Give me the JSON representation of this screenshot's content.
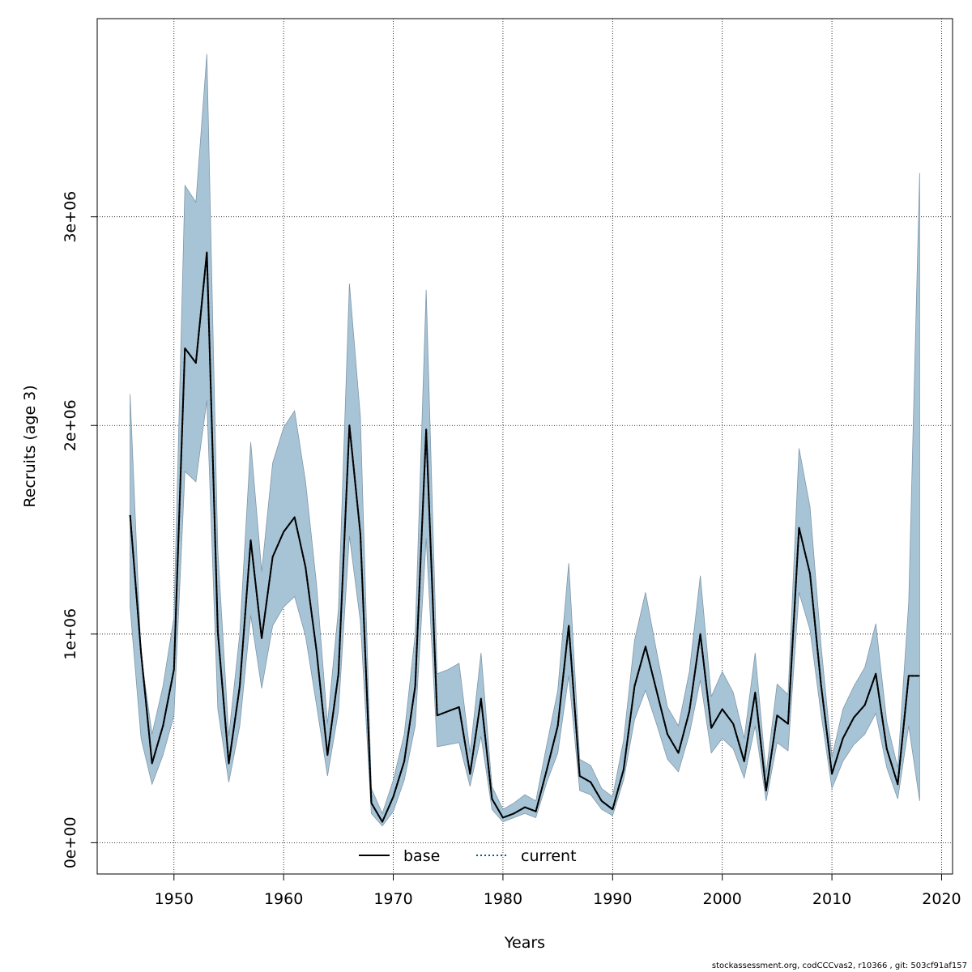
{
  "chart_data": {
    "type": "line",
    "xlabel": "Years",
    "ylabel": "Recruits (age 3)",
    "xlim": [
      1943,
      2021
    ],
    "ylim": [
      -150000,
      3950000
    ],
    "x_ticks": [
      1950,
      1960,
      1970,
      1980,
      1990,
      2000,
      2010,
      2020
    ],
    "x_tick_labels": [
      "1950",
      "1960",
      "1970",
      "1980",
      "1990",
      "2000",
      "2010",
      "2020"
    ],
    "y_ticks": [
      0,
      1000000,
      2000000,
      3000000
    ],
    "y_tick_labels": [
      "0e+00",
      "1e+06",
      "2e+06",
      "3e+06"
    ],
    "grid": true,
    "legend_position": "bottom-center",
    "years": [
      1946,
      1947,
      1948,
      1949,
      1950,
      1951,
      1952,
      1953,
      1954,
      1955,
      1956,
      1957,
      1958,
      1959,
      1960,
      1961,
      1962,
      1963,
      1964,
      1965,
      1966,
      1967,
      1968,
      1969,
      1970,
      1971,
      1972,
      1973,
      1974,
      1975,
      1976,
      1977,
      1978,
      1979,
      1980,
      1981,
      1982,
      1983,
      1984,
      1985,
      1986,
      1987,
      1988,
      1989,
      1990,
      1991,
      1992,
      1993,
      1994,
      1995,
      1996,
      1997,
      1998,
      1999,
      2000,
      2001,
      2002,
      2003,
      2004,
      2005,
      2006,
      2007,
      2008,
      2009,
      2010,
      2011,
      2012,
      2013,
      2014,
      2015,
      2016,
      2017,
      2018
    ],
    "series": [
      {
        "name": "base",
        "style": "solid",
        "color": "#000000",
        "values": [
          1570000,
          910000,
          380000,
          560000,
          830000,
          2370000,
          2300000,
          2830000,
          1010000,
          380000,
          750000,
          1450000,
          980000,
          1370000,
          1490000,
          1560000,
          1320000,
          920000,
          420000,
          810000,
          2000000,
          1480000,
          190000,
          100000,
          220000,
          390000,
          750000,
          1980000,
          610000,
          630000,
          650000,
          330000,
          690000,
          210000,
          120000,
          140000,
          170000,
          150000,
          350000,
          560000,
          1040000,
          320000,
          290000,
          200000,
          160000,
          350000,
          750000,
          940000,
          730000,
          520000,
          430000,
          630000,
          1000000,
          550000,
          640000,
          570000,
          390000,
          720000,
          250000,
          610000,
          570000,
          1510000,
          1290000,
          760000,
          330000,
          500000,
          600000,
          660000,
          810000,
          450000,
          280000,
          800000,
          800000
        ]
      },
      {
        "name": "current",
        "style": "dotted",
        "color": "#005b96",
        "values": [
          1570000,
          910000,
          380000,
          560000,
          830000,
          2370000,
          2300000,
          2830000,
          1010000,
          380000,
          750000,
          1450000,
          980000,
          1370000,
          1490000,
          1560000,
          1320000,
          920000,
          420000,
          810000,
          2000000,
          1480000,
          190000,
          100000,
          220000,
          390000,
          750000,
          1980000,
          610000,
          630000,
          650000,
          330000,
          690000,
          210000,
          120000,
          140000,
          170000,
          150000,
          350000,
          560000,
          1040000,
          320000,
          290000,
          200000,
          160000,
          350000,
          750000,
          940000,
          730000,
          520000,
          430000,
          630000,
          1000000,
          550000,
          640000,
          570000,
          390000,
          720000,
          250000,
          610000,
          570000,
          1510000,
          1290000,
          760000,
          330000,
          500000,
          600000,
          660000,
          810000,
          450000,
          280000,
          800000,
          800000
        ]
      }
    ],
    "confidence_band": {
      "fill_color": "#a7c4d6",
      "edge_color": "#7f97a8",
      "lower": [
        1130000,
        500000,
        280000,
        420000,
        610000,
        1780000,
        1730000,
        2120000,
        640000,
        290000,
        560000,
        1090000,
        740000,
        1040000,
        1130000,
        1180000,
        990000,
        660000,
        320000,
        630000,
        1470000,
        1060000,
        140000,
        80000,
        150000,
        300000,
        560000,
        1460000,
        460000,
        470000,
        480000,
        270000,
        510000,
        160000,
        100000,
        120000,
        140000,
        120000,
        290000,
        430000,
        800000,
        250000,
        230000,
        160000,
        130000,
        300000,
        590000,
        730000,
        570000,
        400000,
        340000,
        520000,
        780000,
        430000,
        500000,
        450000,
        310000,
        560000,
        200000,
        480000,
        440000,
        1200000,
        1020000,
        620000,
        260000,
        390000,
        470000,
        520000,
        620000,
        360000,
        210000,
        560000,
        200000
      ],
      "upper": [
        2150000,
        900000,
        520000,
        750000,
        1080000,
        3150000,
        3070000,
        3780000,
        1400000,
        510000,
        1000000,
        1920000,
        1300000,
        1820000,
        1990000,
        2070000,
        1730000,
        1240000,
        570000,
        1120000,
        2680000,
        2040000,
        260000,
        140000,
        300000,
        520000,
        1000000,
        2650000,
        810000,
        830000,
        860000,
        430000,
        910000,
        270000,
        160000,
        190000,
        230000,
        200000,
        470000,
        730000,
        1340000,
        400000,
        370000,
        260000,
        220000,
        490000,
        970000,
        1200000,
        920000,
        650000,
        560000,
        820000,
        1280000,
        700000,
        820000,
        720000,
        500000,
        910000,
        330000,
        760000,
        710000,
        1890000,
        1610000,
        950000,
        410000,
        640000,
        750000,
        840000,
        1050000,
        580000,
        360000,
        1150000,
        3210000
      ]
    }
  },
  "footer": {
    "text": "stockassessment.org, codCCCvas2, r10366 , git: 503cf91af157"
  }
}
